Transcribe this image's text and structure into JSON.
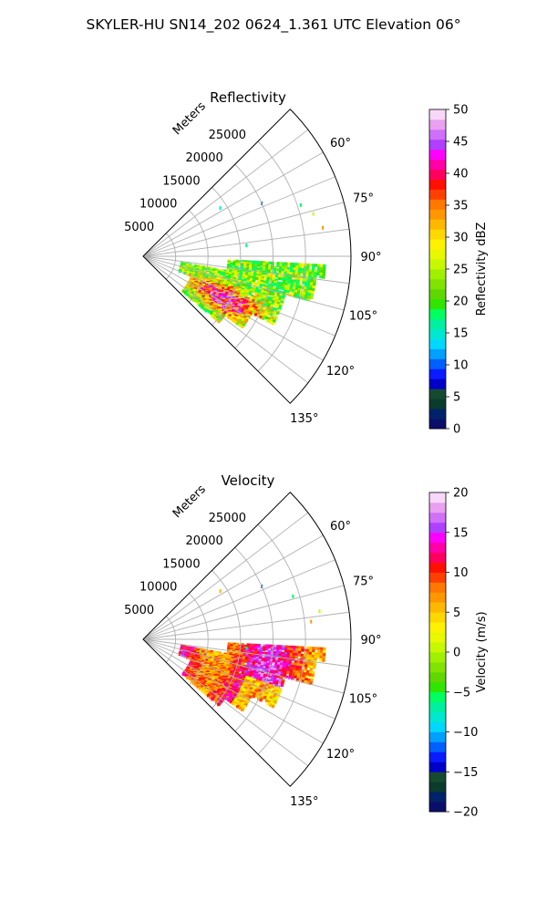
{
  "suptitle": "SKYLER-HU  SN14_202  0624_1.361 UTC Elevation 06°",
  "chart_data": [
    {
      "type": "heatmap",
      "title": "Reflectivity",
      "radial_axis_label": "Meters",
      "radial_ticks": [
        5000,
        10000,
        15000,
        20000,
        25000
      ],
      "radial_tick_labels": [
        "5000",
        "10000",
        "15000",
        "20000",
        "25000"
      ],
      "azimuth_range_deg": [
        45,
        135
      ],
      "azimuth_ticks": [
        60,
        75,
        90,
        105,
        120,
        135
      ],
      "azimuth_tick_labels": [
        "60°",
        "75°",
        "90°",
        "105°",
        "120°",
        "135°"
      ],
      "grid": true,
      "colorbar": {
        "label": "Reflectivity dBZ",
        "range": [
          0,
          50
        ],
        "ticks": [
          0,
          5,
          10,
          15,
          20,
          25,
          30,
          35,
          40,
          45,
          50
        ],
        "tick_labels": [
          "0",
          "5",
          "10",
          "15",
          "20",
          "25",
          "30",
          "35",
          "40",
          "45",
          "50"
        ],
        "levels": 31,
        "colors": [
          "#0b0f6b",
          "#00226a",
          "#0a3b2c",
          "#164a30",
          "#0000c8",
          "#0a1cff",
          "#0060ff",
          "#00a0ff",
          "#00d8ff",
          "#00e8d0",
          "#00f0a0",
          "#00ff60",
          "#30e600",
          "#60d800",
          "#80e400",
          "#a0f000",
          "#c8f800",
          "#e8f800",
          "#fff200",
          "#ffd800",
          "#ffb800",
          "#ff9800",
          "#ff7800",
          "#ff4000",
          "#ff1000",
          "#ff0060",
          "#ff00a8",
          "#ff00ff",
          "#b040ff",
          "#d070f8",
          "#e9a0f0",
          "#f8d8f8"
        ]
      },
      "echo_description": "Reflectivity echoes between ~95° and ~130° azimuth, 4000-27000 m range"
    },
    {
      "type": "heatmap",
      "title": "Velocity",
      "radial_axis_label": "Meters",
      "radial_ticks": [
        5000,
        10000,
        15000,
        20000,
        25000
      ],
      "radial_tick_labels": [
        "5000",
        "10000",
        "15000",
        "20000",
        "25000"
      ],
      "azimuth_range_deg": [
        45,
        135
      ],
      "azimuth_ticks": [
        60,
        75,
        90,
        105,
        120,
        135
      ],
      "azimuth_tick_labels": [
        "60°",
        "75°",
        "90°",
        "105°",
        "120°",
        "135°"
      ],
      "grid": true,
      "colorbar": {
        "label": "Velocity (m/s)",
        "range": [
          -20,
          20
        ],
        "ticks": [
          -20,
          -15,
          -10,
          -5,
          0,
          5,
          10,
          15,
          20
        ],
        "tick_labels": [
          "−20",
          "−15",
          "−10",
          "−5",
          "0",
          "5",
          "10",
          "15",
          "20"
        ],
        "levels": 31,
        "colors": [
          "#0b0f6b",
          "#00226a",
          "#0a3b2c",
          "#164a30",
          "#0000c8",
          "#0a1cff",
          "#0060ff",
          "#00a0ff",
          "#00d8ff",
          "#00e8d0",
          "#00f0a0",
          "#00ff60",
          "#30e600",
          "#60d800",
          "#80e400",
          "#a0f000",
          "#c8f800",
          "#e8f800",
          "#fff200",
          "#ffd800",
          "#ffb800",
          "#ff9800",
          "#ff7800",
          "#ff4000",
          "#ff1000",
          "#ff0060",
          "#ff00a8",
          "#ff00ff",
          "#b040ff",
          "#d070f8",
          "#e9a0f0",
          "#f8d8f8"
        ]
      }
    }
  ]
}
